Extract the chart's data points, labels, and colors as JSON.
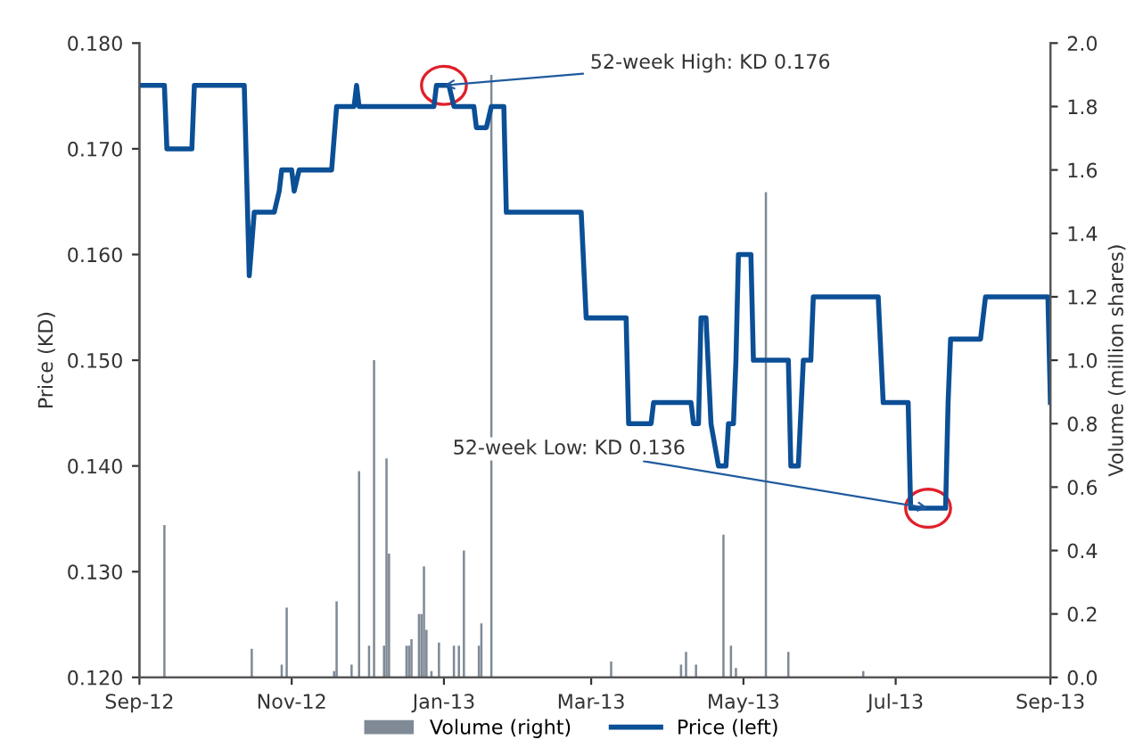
{
  "chart_data": {
    "type": "line",
    "ylabel": "Price (KD)",
    "y2label": "Volume (million shares)",
    "xlim": [
      "2012-09-01",
      "2013-09-01"
    ],
    "xticks": [
      {
        "value": "2012-09-01",
        "label": "Sep-12"
      },
      {
        "value": "2012-11-01",
        "label": "Nov-12"
      },
      {
        "value": "2013-01-01",
        "label": "Jan-13"
      },
      {
        "value": "2013-03-01",
        "label": "Mar-13"
      },
      {
        "value": "2013-05-01",
        "label": "May-13"
      },
      {
        "value": "2013-07-01",
        "label": "Jul-13"
      },
      {
        "value": "2013-09-01",
        "label": "Sep-13"
      }
    ],
    "ylim": [
      0.12,
      0.18
    ],
    "yticks": [
      {
        "value": 0.12,
        "label": "0.120"
      },
      {
        "value": 0.13,
        "label": "0.130"
      },
      {
        "value": 0.14,
        "label": "0.140"
      },
      {
        "value": 0.15,
        "label": "0.150"
      },
      {
        "value": 0.16,
        "label": "0.160"
      },
      {
        "value": 0.17,
        "label": "0.170"
      },
      {
        "value": 0.18,
        "label": "0.180"
      }
    ],
    "y2lim": [
      0,
      2.0
    ],
    "y2ticks": [
      {
        "value": 0,
        "label": "0.0"
      },
      {
        "value": 0.2,
        "label": "0.2"
      },
      {
        "value": 0.4,
        "label": "0.4"
      },
      {
        "value": 0.6,
        "label": "0.6"
      },
      {
        "value": 0.8,
        "label": "0.8"
      },
      {
        "value": 1.0,
        "label": "1.0"
      },
      {
        "value": 1.2,
        "label": "1.2"
      },
      {
        "value": 1.4,
        "label": "1.4"
      },
      {
        "value": 1.6,
        "label": "1.6"
      },
      {
        "value": 1.8,
        "label": "1.8"
      },
      {
        "value": 2.0,
        "label": "2.0"
      }
    ],
    "grid": false,
    "legend": "bottom",
    "series": [
      {
        "name": "Volume (right)",
        "type": "bar",
        "axis": "y2",
        "color": "#7f8a96",
        "x": [
          "2012-09-11",
          "2012-10-16",
          "2012-10-28",
          "2012-10-30",
          "2012-11-18",
          "2012-11-19",
          "2012-11-25",
          "2012-11-28",
          "2012-12-02",
          "2012-12-04",
          "2012-12-08",
          "2012-12-09",
          "2012-12-10",
          "2012-12-17",
          "2012-12-18",
          "2012-12-19",
          "2012-12-22",
          "2012-12-23",
          "2012-12-24",
          "2012-12-25",
          "2012-12-27",
          "2012-12-30",
          "2013-01-05",
          "2013-01-07",
          "2013-01-09",
          "2013-01-15",
          "2013-01-16",
          "2013-01-20",
          "2013-03-09",
          "2013-04-06",
          "2013-04-08",
          "2013-04-12",
          "2013-04-23",
          "2013-04-26",
          "2013-04-28",
          "2013-05-10",
          "2013-05-19",
          "2013-06-18"
        ],
        "values": [
          0.48,
          0.09,
          0.04,
          0.22,
          0.02,
          0.24,
          0.04,
          0.65,
          0.1,
          1.0,
          0.1,
          0.69,
          0.39,
          0.1,
          0.1,
          0.12,
          0.2,
          0.2,
          0.35,
          0.15,
          0.02,
          0.11,
          0.1,
          0.1,
          0.4,
          0.1,
          0.17,
          1.9,
          0.05,
          0.04,
          0.08,
          0.04,
          0.45,
          0.1,
          0.03,
          1.53,
          0.08,
          0.02
        ]
      },
      {
        "name": "Price (left)",
        "color": "#0b4f96",
        "x": [
          "2012-09-01",
          "2012-09-11",
          "2012-09-12",
          "2012-09-22",
          "2012-09-23",
          "2012-10-13",
          "2012-10-15",
          "2012-10-17",
          "2012-10-25",
          "2012-10-27",
          "2012-10-28",
          "2012-11-01",
          "2012-11-02",
          "2012-11-04",
          "2012-11-17",
          "2012-11-19",
          "2012-11-26",
          "2012-11-27",
          "2012-11-28",
          "2012-12-28",
          "2012-12-29",
          "2013-01-03",
          "2013-01-05",
          "2013-01-13",
          "2013-01-14",
          "2013-01-18",
          "2013-01-20",
          "2013-01-25",
          "2013-01-26",
          "2013-02-25",
          "2013-02-27",
          "2013-03-15",
          "2013-03-16",
          "2013-03-25",
          "2013-03-26",
          "2013-04-10",
          "2013-04-11",
          "2013-04-13",
          "2013-04-14",
          "2013-04-16",
          "2013-04-18",
          "2013-04-21",
          "2013-04-24",
          "2013-04-25",
          "2013-04-27",
          "2013-04-28",
          "2013-04-29",
          "2013-05-04",
          "2013-05-05",
          "2013-05-19",
          "2013-05-20",
          "2013-05-23",
          "2013-05-25",
          "2013-05-28",
          "2013-05-29",
          "2013-06-24",
          "2013-06-26",
          "2013-07-06",
          "2013-07-07",
          "2013-07-21",
          "2013-07-22",
          "2013-07-23",
          "2013-08-04",
          "2013-08-06",
          "2013-08-31",
          "2013-09-01"
        ],
        "values": [
          0.176,
          0.176,
          0.17,
          0.17,
          0.176,
          0.176,
          0.158,
          0.164,
          0.164,
          0.166,
          0.168,
          0.168,
          0.166,
          0.168,
          0.168,
          0.174,
          0.174,
          0.176,
          0.174,
          0.174,
          0.176,
          0.176,
          0.174,
          0.174,
          0.172,
          0.172,
          0.174,
          0.174,
          0.164,
          0.164,
          0.154,
          0.154,
          0.144,
          0.144,
          0.146,
          0.146,
          0.144,
          0.144,
          0.154,
          0.154,
          0.144,
          0.14,
          0.14,
          0.144,
          0.144,
          0.15,
          0.16,
          0.16,
          0.15,
          0.15,
          0.14,
          0.14,
          0.15,
          0.15,
          0.156,
          0.156,
          0.146,
          0.146,
          0.136,
          0.136,
          0.146,
          0.152,
          0.152,
          0.156,
          0.156,
          0.146
        ]
      }
    ],
    "annotations": [
      {
        "text": "52-week High: KD 0.176",
        "x": "2013-01-01",
        "y": 0.176
      },
      {
        "text": "52-week Low: KD 0.136",
        "x": "2013-07-14",
        "y": 0.136
      }
    ]
  }
}
